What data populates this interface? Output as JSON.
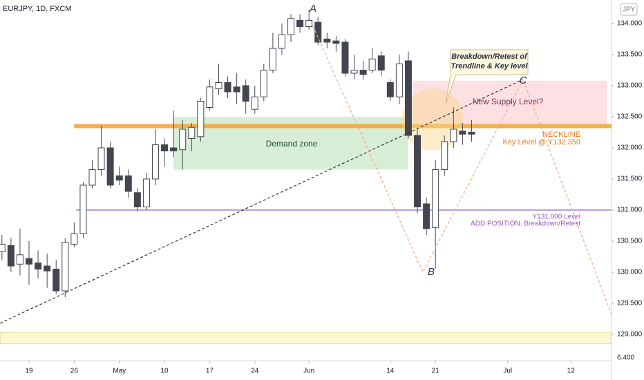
{
  "chart_data": {
    "type": "candlestick",
    "title": "EURJPY, 1D, FXCM",
    "currency_badge": "JPY",
    "corner_label": "6.400",
    "categories": [
      null,
      null,
      null,
      "19",
      null,
      null,
      null,
      null,
      "26",
      null,
      null,
      null,
      null,
      "May",
      null,
      null,
      null,
      null,
      "10",
      null,
      null,
      null,
      null,
      "17",
      null,
      null,
      null,
      null,
      "24",
      null,
      null,
      null,
      null,
      null,
      "Jun",
      null,
      null,
      null,
      null,
      null,
      null,
      null,
      null,
      "14",
      null,
      null,
      null,
      null,
      "21",
      null,
      null,
      null,
      null,
      null,
      null,
      null,
      "Jul",
      null,
      null,
      null,
      null,
      null,
      null,
      "12",
      null,
      null,
      null,
      null
    ],
    "open": [
      130.33,
      130.43,
      130.13,
      130.22,
      130.15,
      130.1,
      130.05,
      129.7,
      130.45,
      130.62,
      131.4,
      131.65,
      132.0,
      131.55,
      131.55,
      131.28,
      131.05,
      131.5,
      132.05,
      132.0,
      131.97,
      132.15,
      132.18,
      132.65,
      132.95,
      133.05,
      132.98,
      133.0,
      132.62,
      132.82,
      133.25,
      133.6,
      133.82,
      134.05,
      133.95,
      134.02,
      133.75,
      133.72,
      133.7,
      133.2,
      133.25,
      133.25,
      133.48,
      133.05,
      132.82,
      133.4,
      132.2,
      131.1,
      130.72,
      131.65,
      132.1,
      132.27,
      132.25,
      null,
      null,
      null,
      null,
      null,
      null,
      null,
      null,
      null,
      null,
      null,
      null,
      null,
      null,
      null
    ],
    "high": [
      130.6,
      130.55,
      130.7,
      130.5,
      130.35,
      130.3,
      130.2,
      130.55,
      130.8,
      131.45,
      131.8,
      132.35,
      132.1,
      131.7,
      131.65,
      131.35,
      131.6,
      132.3,
      132.15,
      132.6,
      132.45,
      132.4,
      132.8,
      133.1,
      133.35,
      133.15,
      133.2,
      133.1,
      133.0,
      133.35,
      133.85,
      134.0,
      134.15,
      134.15,
      134.22,
      134.1,
      133.85,
      133.8,
      133.75,
      133.5,
      133.4,
      133.6,
      133.55,
      133.1,
      133.5,
      133.55,
      132.3,
      131.2,
      131.8,
      132.2,
      132.65,
      132.4,
      132.45,
      null,
      null,
      null,
      null,
      null,
      null,
      null,
      null,
      null,
      null,
      null,
      null,
      null,
      null,
      null
    ],
    "low": [
      130.2,
      130.0,
      129.95,
      129.8,
      129.9,
      129.75,
      129.65,
      129.6,
      130.4,
      130.55,
      131.35,
      131.55,
      131.35,
      131.4,
      131.2,
      130.98,
      131.0,
      131.4,
      131.7,
      131.85,
      131.65,
      131.95,
      132.1,
      132.6,
      132.85,
      132.8,
      132.7,
      132.55,
      132.55,
      132.75,
      133.2,
      133.5,
      133.7,
      133.85,
      133.9,
      133.65,
      133.6,
      133.55,
      133.15,
      133.1,
      133.1,
      133.2,
      133.15,
      132.75,
      132.7,
      132.15,
      130.95,
      130.6,
      130.05,
      131.55,
      132.0,
      132.05,
      132.1,
      null,
      null,
      null,
      null,
      null,
      null,
      null,
      null,
      null,
      null,
      null,
      null,
      null,
      null,
      null
    ],
    "close": [
      130.45,
      130.1,
      130.28,
      130.13,
      130.05,
      130.02,
      129.7,
      130.48,
      130.62,
      131.4,
      131.65,
      132.0,
      131.4,
      131.48,
      131.3,
      131.05,
      131.5,
      132.05,
      131.95,
      131.95,
      132.3,
      132.33,
      132.75,
      132.98,
      133.05,
      132.9,
      132.9,
      132.75,
      132.82,
      133.25,
      133.6,
      133.82,
      134.08,
      133.95,
      134.05,
      133.7,
      133.7,
      133.68,
      133.2,
      133.25,
      133.18,
      133.43,
      133.25,
      132.82,
      133.35,
      132.2,
      131.05,
      130.7,
      131.65,
      132.1,
      132.3,
      132.22,
      132.22,
      null,
      null,
      null,
      null,
      null,
      null,
      null,
      null,
      null,
      null,
      null,
      null,
      null,
      null,
      null
    ],
    "up_color": "#ffffff",
    "down_color": "#434651",
    "outline_color": "#434651",
    "ylim": [
      128.5778,
      134.3778
    ],
    "yticks": [
      {
        "value": 134,
        "label": "134.000"
      },
      {
        "value": 133.5,
        "label": "133.500"
      },
      {
        "value": 133,
        "label": "133.000"
      },
      {
        "value": 132.5,
        "label": "132.500"
      },
      {
        "value": 132,
        "label": "132.000"
      },
      {
        "value": 131.5,
        "label": "131.500"
      },
      {
        "value": 131,
        "label": "131.000"
      },
      {
        "value": 130.5,
        "label": "130.500"
      },
      {
        "value": 130,
        "label": "130.000"
      },
      {
        "value": 129.5,
        "label": "129.500"
      },
      {
        "value": 129,
        "label": "129.000"
      }
    ],
    "zones": [
      {
        "name": "Demand zone",
        "from": 19,
        "to": 45,
        "top": 132.5,
        "bottom": 131.65,
        "color": "#d7eed6"
      },
      {
        "name": "New Supply Level?",
        "from": 45.5,
        "to": 67,
        "top": 133.08,
        "bottom": 132.38,
        "color": "#fde0e3"
      },
      {
        "from": -0.2,
        "to": 67.5,
        "top": 129.03,
        "bottom": 128.85,
        "color": "#fdf6d3"
      }
    ],
    "levels": [
      {
        "value": 132.35,
        "from": 8,
        "color": "#f5a53a",
        "width": 6
      },
      {
        "value": 131.0,
        "from": 8.2,
        "color": "#a070c8",
        "width": 1.5
      }
    ],
    "trendlines": [
      {
        "color": "#333333",
        "points": [
          [
            -0.2,
            129.18
          ],
          [
            57.7,
            133.1
          ]
        ]
      },
      {
        "color": "#f4a582",
        "points": [
          [
            34,
            134.1
          ],
          [
            46.6,
            130.0
          ],
          [
            57.7,
            133.1
          ],
          [
            67.5,
            129.32
          ]
        ]
      }
    ],
    "annotations": {
      "A": "A",
      "B": "B",
      "C": "C",
      "callout": [
        "Breakdown/Retest of",
        "Trendline & Key level"
      ],
      "neckline": "NECKLINE",
      "key_level": "Key Level @ Y132.350",
      "level_131": "Y131.000 Level",
      "add_position": "ADD POSITION: Breakdown/Retest"
    }
  }
}
